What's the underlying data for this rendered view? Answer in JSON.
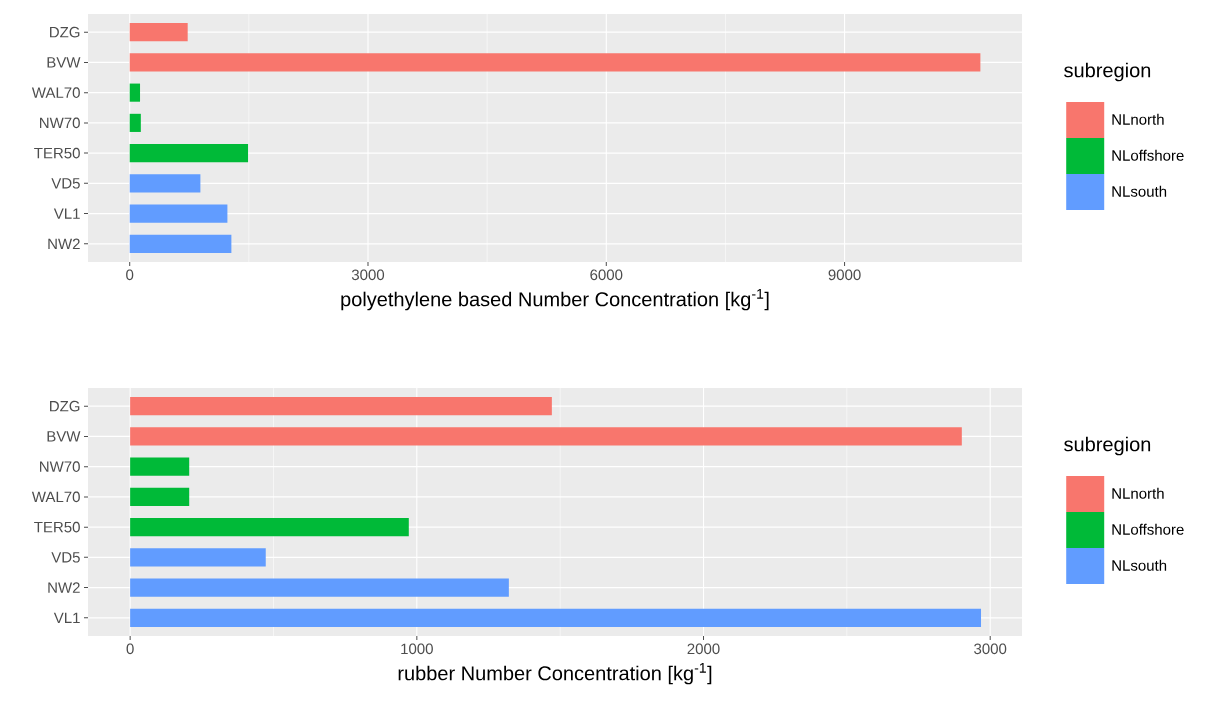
{
  "chart_data": [
    {
      "type": "bar",
      "orientation": "horizontal",
      "categories": [
        "DZG",
        "BVW",
        "WAL70",
        "NW70",
        "TER50",
        "VD5",
        "VL1",
        "NW2"
      ],
      "series": [
        {
          "name": "NLnorth",
          "color": "#f8766d",
          "values": [
            730,
            10710,
            null,
            null,
            null,
            null,
            null,
            null
          ]
        },
        {
          "name": "NLoffshore",
          "color": "#00ba38",
          "values": [
            null,
            null,
            130,
            140,
            1490,
            null,
            null,
            null
          ]
        },
        {
          "name": "NLsouth",
          "color": "#619cff",
          "values": [
            null,
            null,
            null,
            null,
            null,
            890,
            1230,
            1280
          ]
        }
      ],
      "xlabel": "polyethylene based Number Concentration [kg$^{-1}$]",
      "xlim": [
        -525,
        11234
      ],
      "xticks": [
        0,
        3000,
        6000,
        9000
      ],
      "grid": true,
      "legend": "right",
      "legend_title": "subregion"
    },
    {
      "type": "bar",
      "orientation": "horizontal",
      "categories": [
        "DZG",
        "BVW",
        "NW70",
        "WAL70",
        "TER50",
        "VD5",
        "NW2",
        "VL1"
      ],
      "series": [
        {
          "name": "NLnorth",
          "color": "#f8766d",
          "values": [
            1471,
            2901,
            null,
            null,
            null,
            null,
            null,
            null
          ]
        },
        {
          "name": "NLoffshore",
          "color": "#00ba38",
          "values": [
            null,
            null,
            206,
            206,
            972,
            null,
            null,
            null
          ]
        },
        {
          "name": "NLsouth",
          "color": "#619cff",
          "values": [
            null,
            null,
            null,
            null,
            null,
            473,
            1321,
            2968
          ]
        }
      ],
      "xlabel": "rubber Number Concentration [kg$^{-1}$]",
      "xlim": [
        -147,
        3111
      ],
      "xticks": [
        0,
        1000,
        2000,
        3000
      ],
      "grid": true,
      "legend": "right",
      "legend_title": "subregion"
    }
  ]
}
